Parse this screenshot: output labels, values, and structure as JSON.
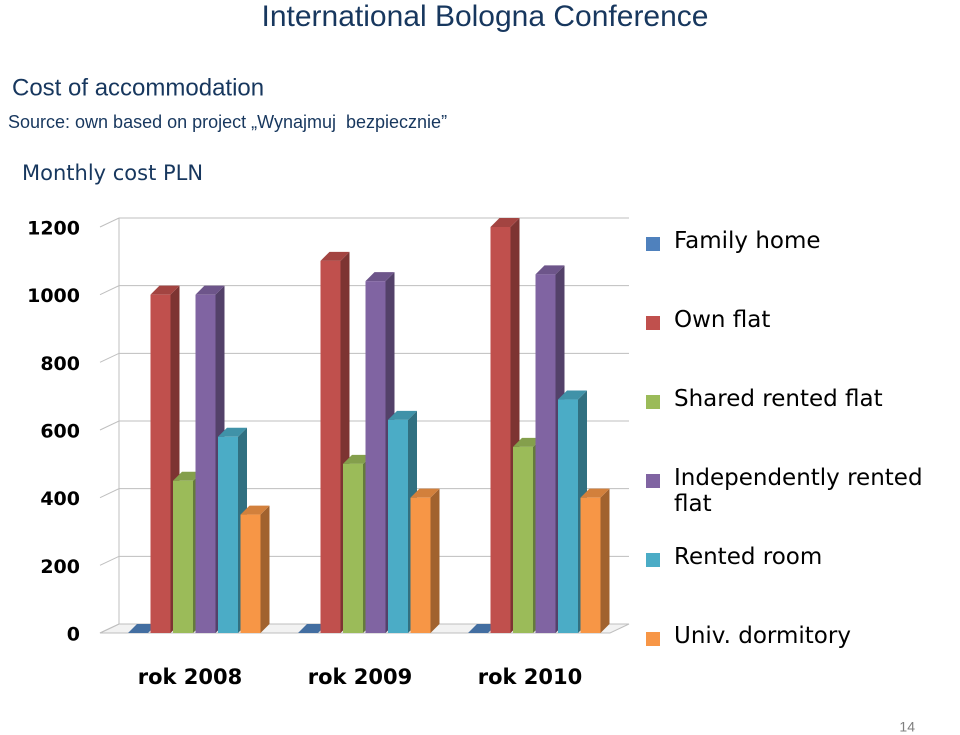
{
  "slide": {
    "title": "International Bologna Conference",
    "heading": "Cost of accommodation",
    "source": "Source: own based on project „Wynajmuj  bezpiecznie”",
    "page_number": "14"
  },
  "chart_data": {
    "type": "bar",
    "y_label": "Monthly cost PLN",
    "categories": [
      "rok 2008",
      "rok 2009",
      "rok 2010"
    ],
    "series": [
      {
        "name": "Family home",
        "color": "#4f81bd",
        "values": [
          0,
          0,
          0
        ]
      },
      {
        "name": "Own flat",
        "color": "#c0504d",
        "values": [
          1000,
          1100,
          1200
        ]
      },
      {
        "name": "Shared rented flat",
        "color": "#9bbb59",
        "values": [
          450,
          500,
          550
        ]
      },
      {
        "name": "Independently rented flat",
        "color": "#8064a2",
        "values": [
          1000,
          1040,
          1060
        ]
      },
      {
        "name": "Rented room",
        "color": "#4bacc6",
        "values": [
          580,
          630,
          690
        ]
      },
      {
        "name": "Univ. dormitory",
        "color": "#f79646",
        "values": [
          350,
          400,
          400
        ]
      }
    ],
    "ylim": [
      0,
      1200
    ],
    "yticks": [
      0,
      200,
      400,
      600,
      800,
      1000,
      1200
    ],
    "grid": true,
    "legend": "right"
  }
}
